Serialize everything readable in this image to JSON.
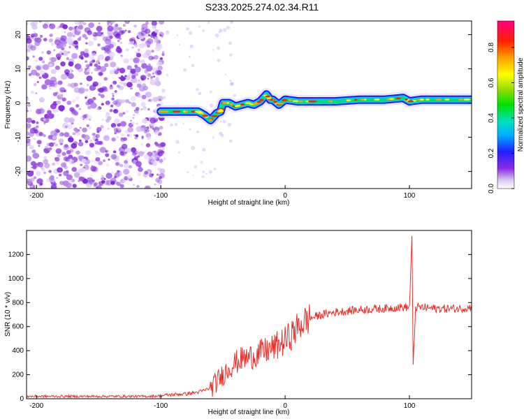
{
  "title": "S233.2025.274.02.34.R11",
  "colors": {
    "snr_line": "#e8302a",
    "speckle": "#8a2be2",
    "axis": "#000000"
  },
  "chart_data": [
    {
      "type": "heatmap",
      "title": "S233.2025.274.02.34.R11",
      "xlabel": "Height of straight line (km)",
      "ylabel": "Frequency (Hz)",
      "xlim": [
        -208,
        150
      ],
      "ylim": [
        -25,
        24
      ],
      "xticks": [
        -200,
        -100,
        0,
        100
      ],
      "yticks": [
        -20,
        -10,
        0,
        10,
        20
      ],
      "colorbar": {
        "label": "Normalized spectral amplitude",
        "range": [
          0,
          0.95
        ],
        "ticks": [
          0.0,
          0.2,
          0.4,
          0.6,
          0.8
        ]
      },
      "noise_region_x": [
        -208,
        -100
      ],
      "signal_track": {
        "x": [
          -100,
          -90,
          -80,
          -70,
          -65,
          -60,
          -55,
          -52,
          -50,
          -45,
          -40,
          -35,
          -30,
          -25,
          -20,
          -15,
          -12,
          -10,
          -5,
          0,
          10,
          20,
          40,
          60,
          80,
          95,
          100,
          110,
          130,
          150
        ],
        "frequency": [
          -2.5,
          -2.5,
          -2.5,
          -2.5,
          -3.5,
          -5,
          -3,
          -2.5,
          0,
          0,
          -1,
          -0.5,
          0,
          -0.5,
          0.5,
          2.5,
          1,
          1,
          -0.5,
          1,
          0.5,
          0.5,
          0.5,
          1,
          1,
          1.5,
          0.5,
          1,
          1,
          1
        ]
      }
    },
    {
      "type": "line",
      "xlabel": "Height of straight line (km)",
      "ylabel": "SNR (10 * v/v)",
      "xlim": [
        -208,
        150
      ],
      "ylim": [
        0,
        1400
      ],
      "xticks": [
        -200,
        -100,
        0,
        100
      ],
      "yticks": [
        0,
        200,
        400,
        600,
        800,
        1000,
        1200
      ],
      "series": [
        {
          "name": "SNR",
          "x": [
            -208,
            -150,
            -110,
            -100,
            -90,
            -80,
            -70,
            -65,
            -60,
            -55,
            -50,
            -45,
            -40,
            -35,
            -30,
            -25,
            -20,
            -15,
            -10,
            -5,
            0,
            5,
            10,
            15,
            20,
            30,
            40,
            50,
            60,
            70,
            80,
            90,
            95,
            100,
            102,
            103,
            105,
            110,
            120,
            130,
            140,
            150
          ],
          "values": [
            20,
            20,
            20,
            25,
            35,
            40,
            55,
            70,
            90,
            140,
            200,
            260,
            300,
            330,
            340,
            360,
            380,
            400,
            420,
            450,
            480,
            530,
            590,
            640,
            670,
            700,
            720,
            730,
            740,
            745,
            750,
            760,
            760,
            760,
            1350,
            280,
            760,
            760,
            750,
            750,
            750,
            760
          ]
        }
      ]
    }
  ]
}
